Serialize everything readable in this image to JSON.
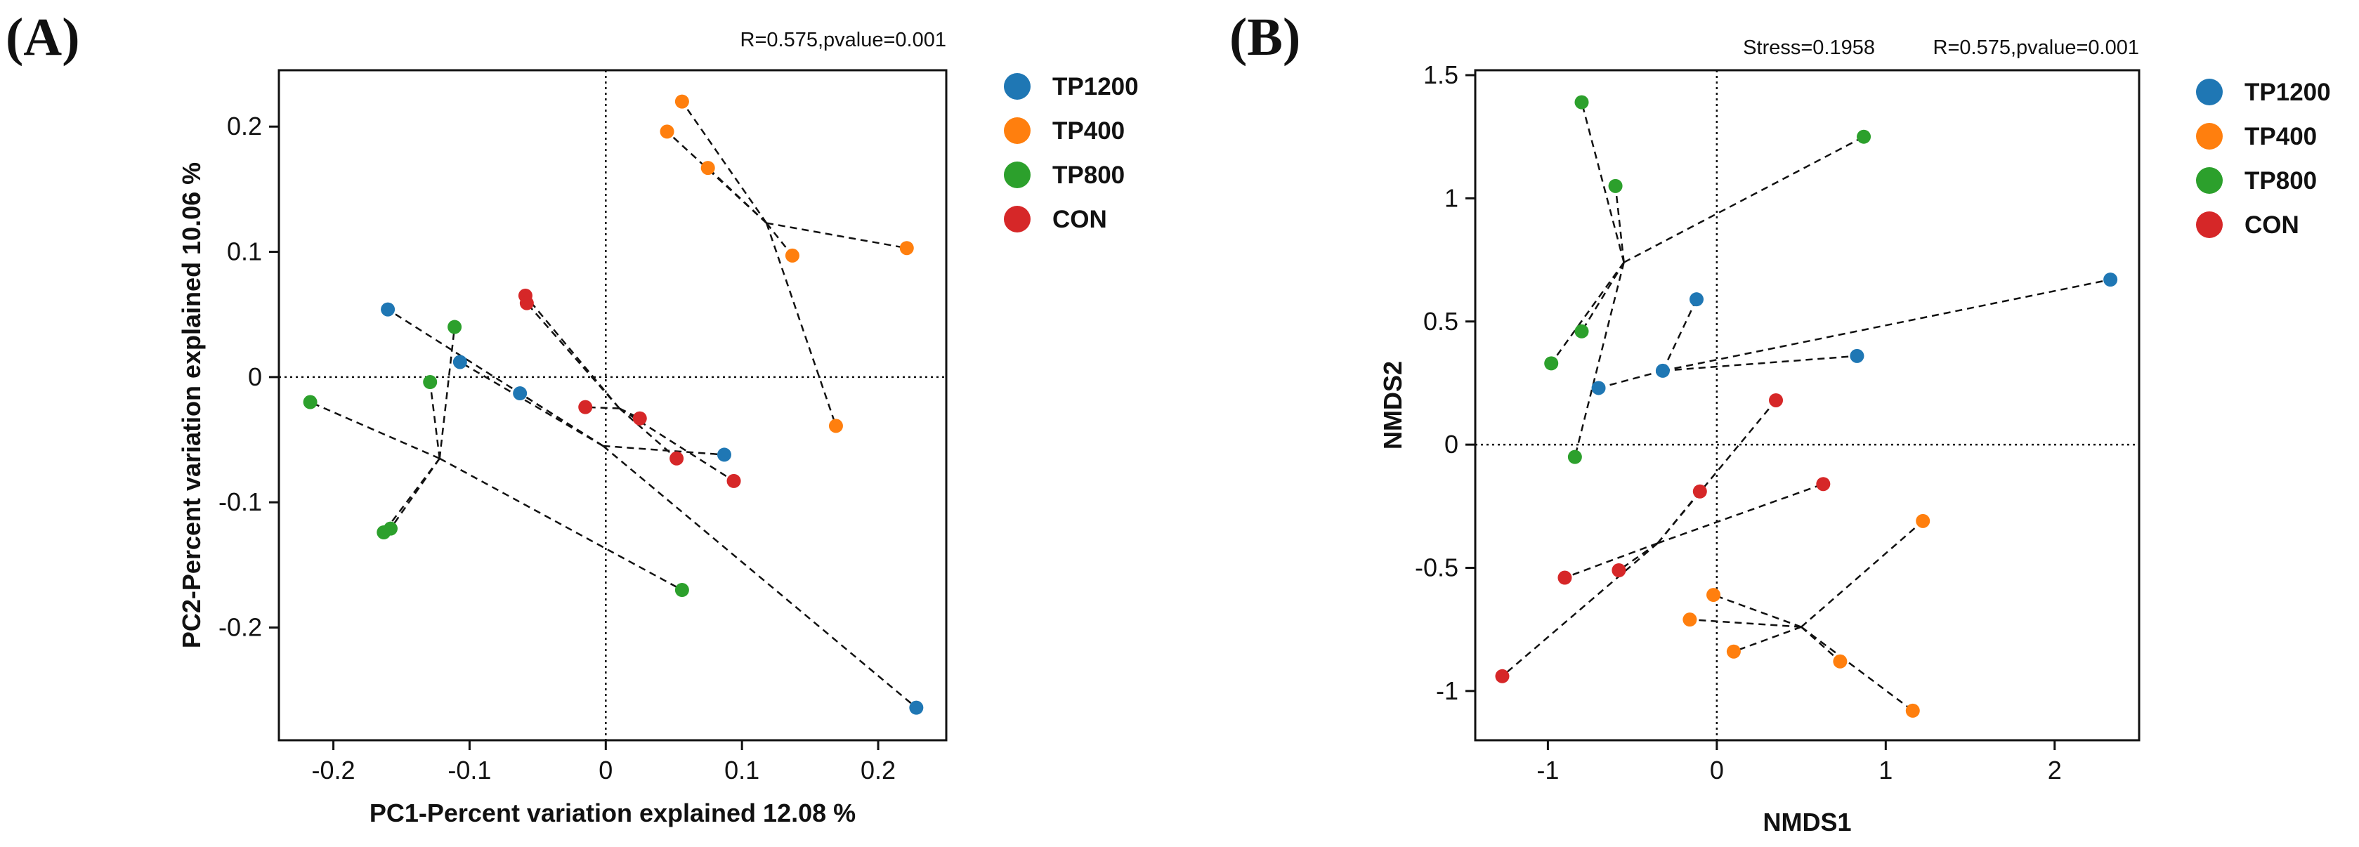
{
  "colors": {
    "TP1200": "#1f77b4",
    "TP400": "#ff7f0e",
    "TP800": "#2ca02c",
    "CON": "#d62728"
  },
  "chart_data": [
    {
      "panel_label": "(A)",
      "type": "scatter",
      "stats": [
        "R=0.575,pvalue=0.001"
      ],
      "xlabel": "PC1-Percent variation explained 12.08 %",
      "ylabel": "PC2-Percent variation explained 10.06 %",
      "xlim": [
        -0.24,
        0.25
      ],
      "ylim": [
        -0.29,
        0.245
      ],
      "xticks": [
        -0.2,
        -0.1,
        0,
        0.1,
        0.2
      ],
      "xtick_labels": [
        "-0.2",
        "-0.1",
        "0",
        "0.1",
        "0.2"
      ],
      "yticks": [
        -0.2,
        -0.1,
        0,
        0.1,
        0.2
      ],
      "ytick_labels": [
        "-0.2",
        "-0.1",
        "0",
        "0.1",
        "0.2"
      ],
      "reference_lines": {
        "x": 0,
        "y": 0
      },
      "legend": [
        "TP1200",
        "TP400",
        "TP800",
        "CON"
      ],
      "series": [
        {
          "name": "TP1200",
          "centroid": [
            -0.002,
            -0.055
          ],
          "points": [
            [
              -0.16,
              0.054
            ],
            [
              -0.107,
              0.012
            ],
            [
              -0.063,
              -0.013
            ],
            [
              0.087,
              -0.062
            ],
            [
              0.228,
              -0.264
            ]
          ]
        },
        {
          "name": "TP400",
          "centroid": [
            0.118,
            0.123
          ],
          "points": [
            [
              0.056,
              0.22
            ],
            [
              0.045,
              0.196
            ],
            [
              0.075,
              0.167
            ],
            [
              0.221,
              0.103
            ],
            [
              0.137,
              0.097
            ],
            [
              0.169,
              -0.039
            ]
          ]
        },
        {
          "name": "TP800",
          "centroid": [
            -0.122,
            -0.065
          ],
          "points": [
            [
              -0.111,
              0.04
            ],
            [
              -0.129,
              -0.004
            ],
            [
              -0.217,
              -0.02
            ],
            [
              -0.163,
              -0.124
            ],
            [
              -0.158,
              -0.121
            ],
            [
              0.056,
              -0.17
            ]
          ]
        },
        {
          "name": "CON",
          "centroid": [
            0.01,
            -0.025
          ],
          "points": [
            [
              -0.059,
              0.065
            ],
            [
              -0.058,
              0.059
            ],
            [
              -0.015,
              -0.024
            ],
            [
              0.025,
              -0.033
            ],
            [
              0.052,
              -0.065
            ],
            [
              0.094,
              -0.083
            ]
          ]
        }
      ]
    },
    {
      "panel_label": "(B)",
      "type": "scatter",
      "stats": [
        "Stress=0.1958",
        "R=0.575,pvalue=0.001"
      ],
      "xlabel": "NMDS1",
      "ylabel": "NMDS2",
      "xlim": [
        -1.43,
        2.5
      ],
      "ylim": [
        -1.2,
        1.52
      ],
      "xticks": [
        -1,
        0,
        1,
        2
      ],
      "xtick_labels": [
        "-1",
        "0",
        "1",
        "2"
      ],
      "yticks": [
        -1,
        -0.5,
        0,
        0.5,
        1,
        1.5
      ],
      "ytick_labels": [
        "-1",
        "-0.5",
        "0",
        "0.5",
        "1",
        "1.5"
      ],
      "reference_lines": {
        "x": 0,
        "y": 0
      },
      "legend": [
        "TP1200",
        "TP400",
        "TP800",
        "CON"
      ],
      "series": [
        {
          "name": "TP1200",
          "centroid": [
            -0.32,
            0.3
          ],
          "points": [
            [
              -0.12,
              0.59
            ],
            [
              -0.32,
              0.3
            ],
            [
              -0.7,
              0.23
            ],
            [
              0.83,
              0.36
            ],
            [
              2.33,
              0.67
            ]
          ]
        },
        {
          "name": "TP400",
          "centroid": [
            0.5,
            -0.74
          ],
          "points": [
            [
              1.22,
              -0.31
            ],
            [
              -0.02,
              -0.61
            ],
            [
              -0.16,
              -0.71
            ],
            [
              0.1,
              -0.84
            ],
            [
              0.73,
              -0.88
            ],
            [
              1.16,
              -1.08
            ]
          ]
        },
        {
          "name": "TP800",
          "centroid": [
            -0.55,
            0.74
          ],
          "points": [
            [
              -0.8,
              1.39
            ],
            [
              -0.6,
              1.05
            ],
            [
              0.87,
              1.25
            ],
            [
              -0.8,
              0.46
            ],
            [
              -0.98,
              0.33
            ],
            [
              -0.84,
              -0.05
            ]
          ]
        },
        {
          "name": "CON",
          "centroid": [
            -0.35,
            -0.4
          ],
          "points": [
            [
              0.35,
              0.18
            ],
            [
              -0.1,
              -0.19
            ],
            [
              0.63,
              -0.16
            ],
            [
              -0.58,
              -0.51
            ],
            [
              -0.9,
              -0.54
            ],
            [
              -1.27,
              -0.94
            ]
          ]
        }
      ]
    }
  ]
}
